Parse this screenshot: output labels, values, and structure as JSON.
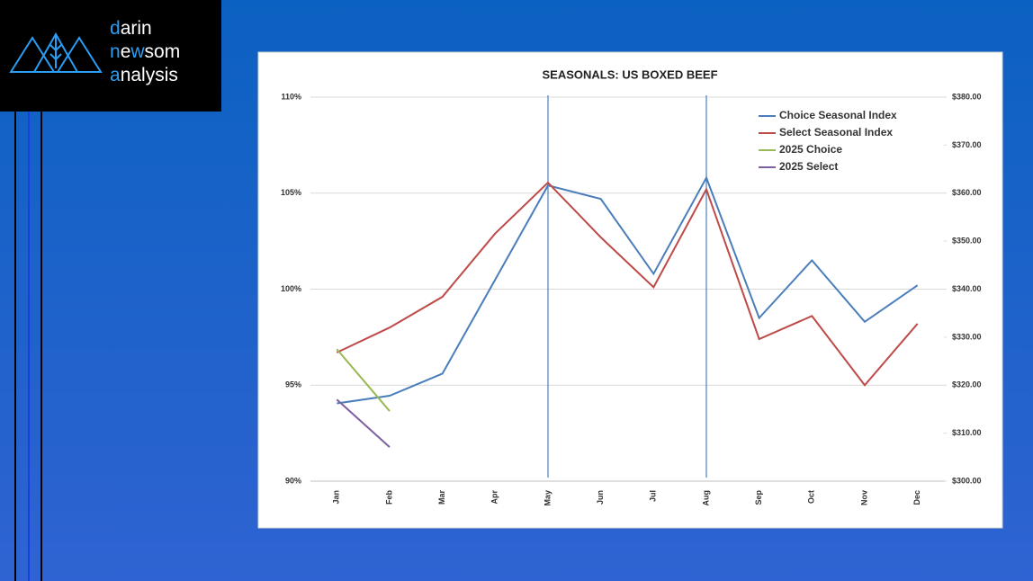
{
  "logo": [
    [
      "d",
      "arin"
    ],
    [
      "n",
      "e",
      "w",
      "som"
    ],
    [
      "a",
      "nalysis"
    ]
  ],
  "chart_data": {
    "type": "line",
    "title": "SEASONALS: US BOXED BEEF",
    "categories": [
      "Jan",
      "Feb",
      "Mar",
      "Apr",
      "May",
      "Jun",
      "Jul",
      "Aug",
      "Sep",
      "Oct",
      "Nov",
      "Dec"
    ],
    "ylim": [
      90,
      110
    ],
    "yticks": [
      {
        "value": 90,
        "label": "90%"
      },
      {
        "value": 95,
        "label": "95%"
      },
      {
        "value": 100,
        "label": "100%"
      },
      {
        "value": 105,
        "label": "105%"
      },
      {
        "value": 110,
        "label": "110%"
      }
    ],
    "y2lim": [
      300,
      380
    ],
    "y2ticks": [
      {
        "value": 300,
        "label": "$300.00"
      },
      {
        "value": 310,
        "label": "$310.00"
      },
      {
        "value": 320,
        "label": "$320.00"
      },
      {
        "value": 330,
        "label": "$330.00"
      },
      {
        "value": 340,
        "label": "$340.00"
      },
      {
        "value": 350,
        "label": "$350.00"
      },
      {
        "value": 360,
        "label": "$360.00"
      },
      {
        "value": 370,
        "label": "$370.00"
      },
      {
        "value": 380,
        "label": "$380.00"
      }
    ],
    "grid": true,
    "legend": "upper right",
    "series": [
      {
        "name": "Choice Seasonal Index",
        "color": "#4a7ebb",
        "values": [
          94.05,
          94.45,
          95.6,
          100.5,
          105.4,
          104.7,
          100.8,
          105.8,
          98.5,
          101.5,
          98.3,
          100.2
        ]
      },
      {
        "name": "Select Seasonal Index",
        "color": "#be4b48",
        "values": [
          96.7,
          98.0,
          99.6,
          102.9,
          105.55,
          102.7,
          100.1,
          105.2,
          97.4,
          98.6,
          95.0,
          98.2
        ]
      },
      {
        "name": "2025 Choice",
        "color": "#98b954",
        "axis": "y2",
        "values": [
          327.5,
          314.6,
          null,
          null,
          null,
          null,
          null,
          null,
          null,
          null,
          null,
          null
        ]
      },
      {
        "name": "2025 Select",
        "color": "#7d60a0",
        "axis": "y2",
        "values": [
          317.0,
          307.1,
          null,
          null,
          null,
          null,
          null,
          null,
          null,
          null,
          null,
          null
        ]
      }
    ]
  }
}
